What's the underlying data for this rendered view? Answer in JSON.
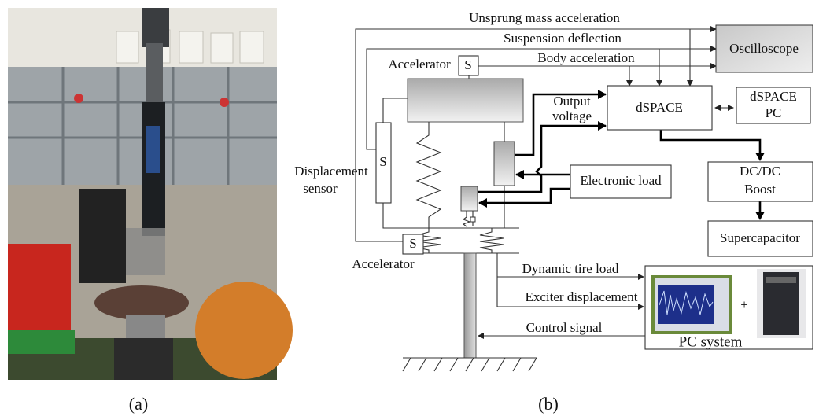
{
  "panel_labels": [
    "(a)",
    "(b)"
  ],
  "diagram": {
    "oscilloscope": "Oscilloscope",
    "dspace": "dSPACE",
    "dspace_pc": [
      "dSPACE",
      "PC"
    ],
    "electronic_load": "Electronic load",
    "dcdc_boost": [
      "DC/DC",
      "Boost"
    ],
    "supercapacitor": "Supercapacitor",
    "pc_system": "PC system",
    "plus": "+",
    "sensor_symbols": [
      "S",
      "S",
      "S"
    ],
    "labels": {
      "unsprung_mass_acceleration": "Unsprung mass acceleration",
      "suspension_deflection": "Suspension deflection",
      "body_acceleration": "Body acceleration",
      "accelerator_top": "Accelerator",
      "accelerator_bottom": "Accelerator",
      "output_voltage": [
        "Output",
        "voltage"
      ],
      "displacement_sensor": [
        "Displacement",
        "sensor"
      ],
      "dynamic_tire_load": "Dynamic tire load",
      "exciter_displacement": "Exciter displacement",
      "control_signal": "Control signal"
    }
  }
}
